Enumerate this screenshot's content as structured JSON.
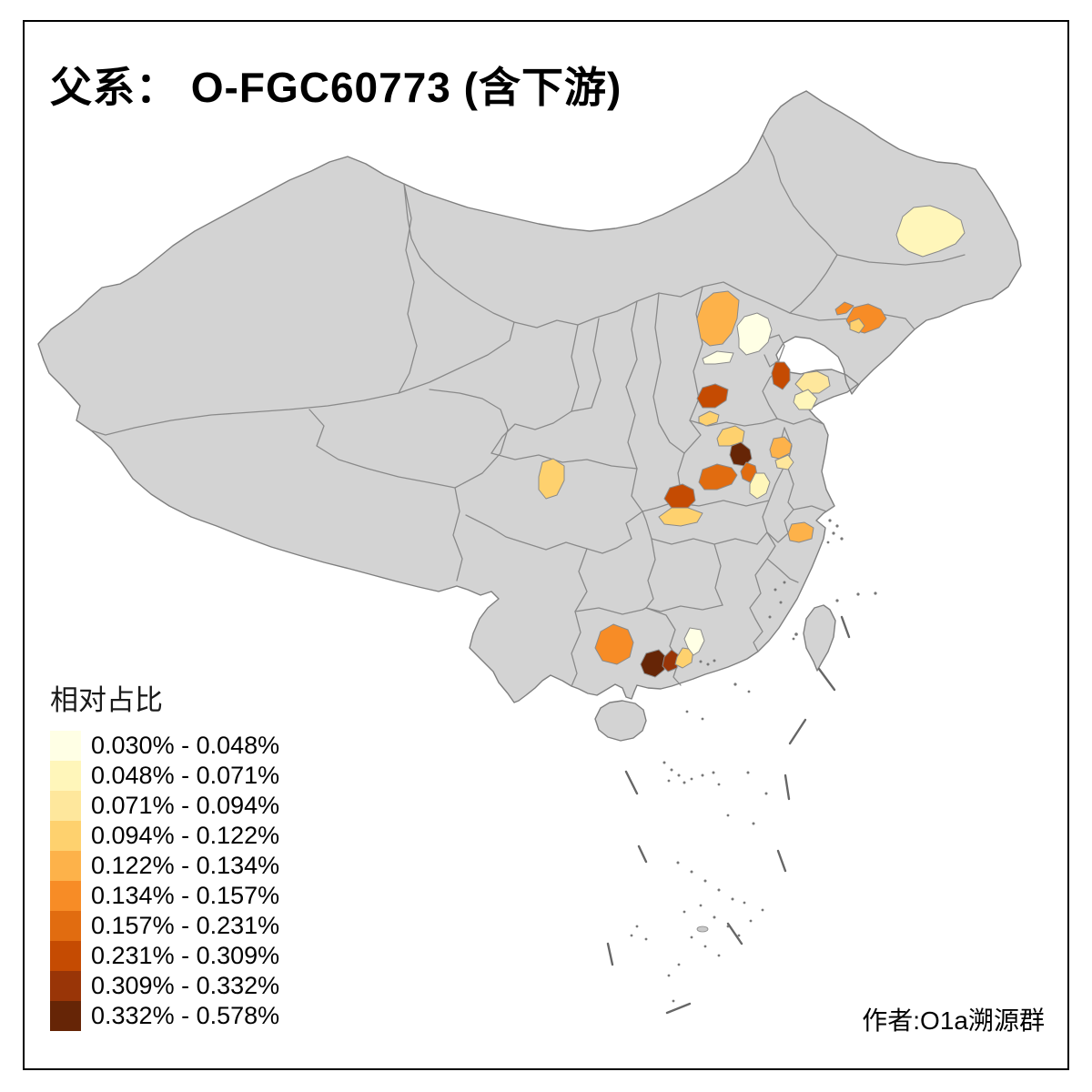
{
  "title": "父系： O-FGC60773 (含下游)",
  "attribution": "作者:O1a溯源群",
  "legend": {
    "title": "相对占比",
    "classes": [
      {
        "label": "0.030% - 0.048%",
        "color": "#FFFFE5"
      },
      {
        "label": "0.048% - 0.071%",
        "color": "#FFF6BA"
      },
      {
        "label": "0.071% - 0.094%",
        "color": "#FEE79C"
      },
      {
        "label": "0.094% - 0.122%",
        "color": "#FED16E"
      },
      {
        "label": "0.122% - 0.134%",
        "color": "#FDB24A"
      },
      {
        "label": "0.134% - 0.157%",
        "color": "#F78C26"
      },
      {
        "label": "0.157% - 0.231%",
        "color": "#E16C10"
      },
      {
        "label": "0.231% - 0.309%",
        "color": "#C54B02"
      },
      {
        "label": "0.309% - 0.332%",
        "color": "#993507"
      },
      {
        "label": "0.332% - 0.578%",
        "color": "#662506"
      }
    ]
  },
  "map": {
    "base_land_fill": "#D3D3D3",
    "border_color": "#8A8A8A",
    "sea_color": "#FFFFFF",
    "regions": [
      {
        "id": "heilongjiang-central",
        "class_index": 1
      },
      {
        "id": "hebei-northwest",
        "class_index": 4
      },
      {
        "id": "beijing-area-pale",
        "class_index": 0
      },
      {
        "id": "hebei-central-pale",
        "class_index": 0
      },
      {
        "id": "liaoning-coast-orange",
        "class_index": 5
      },
      {
        "id": "liaoning-coast-light",
        "class_index": 3
      },
      {
        "id": "hebei-coast-dark",
        "class_index": 7
      },
      {
        "id": "hebei-south-dark",
        "class_index": 7
      },
      {
        "id": "hebei-south-light",
        "class_index": 3
      },
      {
        "id": "shandong-north-yellow",
        "class_index": 2
      },
      {
        "id": "shandong-central-pale",
        "class_index": 1
      },
      {
        "id": "henan-north-light",
        "class_index": 3
      },
      {
        "id": "henan-central-darkest",
        "class_index": 9
      },
      {
        "id": "henan-central-dark",
        "class_index": 6
      },
      {
        "id": "henan-southeast-pale",
        "class_index": 1
      },
      {
        "id": "huaibei-orange",
        "class_index": 4
      },
      {
        "id": "huaibei-light",
        "class_index": 2
      },
      {
        "id": "henan-west-orange",
        "class_index": 6
      },
      {
        "id": "hubei-northwest-dark",
        "class_index": 7
      },
      {
        "id": "hubei-central-light",
        "class_index": 3
      },
      {
        "id": "sichuan-basin-light",
        "class_index": 3
      },
      {
        "id": "zhejiang-central-orange",
        "class_index": 4
      },
      {
        "id": "guangxi-central-orange",
        "class_index": 5
      },
      {
        "id": "guangdong-west-darkest",
        "class_index": 9
      },
      {
        "id": "guangdong-west-dark",
        "class_index": 8
      },
      {
        "id": "guangdong-west-light",
        "class_index": 3
      },
      {
        "id": "guangdong-north-pale",
        "class_index": 0
      }
    ]
  },
  "chart_data": {
    "type": "choropleth",
    "title": "父系： O-FGC60773 (含下游)",
    "legend_title": "相对占比",
    "unit": "percent of population (relative share)",
    "classes": [
      {
        "range": "0.030% - 0.048%",
        "color": "#FFFFE5"
      },
      {
        "range": "0.048% - 0.071%",
        "color": "#FFF6BA"
      },
      {
        "range": "0.071% - 0.094%",
        "color": "#FEE79C"
      },
      {
        "range": "0.094% - 0.122%",
        "color": "#FED16E"
      },
      {
        "range": "0.122% - 0.134%",
        "color": "#FDB24A"
      },
      {
        "range": "0.134% - 0.157%",
        "color": "#F78C26"
      },
      {
        "range": "0.157% - 0.231%",
        "color": "#E16C10"
      },
      {
        "range": "0.231% - 0.309%",
        "color": "#C54B02"
      },
      {
        "range": "0.309% - 0.332%",
        "color": "#993507"
      },
      {
        "range": "0.332% - 0.578%",
        "color": "#662506"
      }
    ],
    "highlighted_regions": [
      {
        "id": "heilongjiang-central",
        "value_range": "0.048% - 0.071%"
      },
      {
        "id": "hebei-northwest",
        "value_range": "0.122% - 0.134%"
      },
      {
        "id": "beijing-area-pale",
        "value_range": "0.030% - 0.048%"
      },
      {
        "id": "hebei-central-pale",
        "value_range": "0.030% - 0.048%"
      },
      {
        "id": "liaoning-coast-orange",
        "value_range": "0.134% - 0.157%"
      },
      {
        "id": "liaoning-coast-light",
        "value_range": "0.094% - 0.122%"
      },
      {
        "id": "hebei-coast-dark",
        "value_range": "0.231% - 0.309%"
      },
      {
        "id": "hebei-south-dark",
        "value_range": "0.231% - 0.309%"
      },
      {
        "id": "hebei-south-light",
        "value_range": "0.094% - 0.122%"
      },
      {
        "id": "shandong-north-yellow",
        "value_range": "0.071% - 0.094%"
      },
      {
        "id": "shandong-central-pale",
        "value_range": "0.048% - 0.071%"
      },
      {
        "id": "henan-north-light",
        "value_range": "0.094% - 0.122%"
      },
      {
        "id": "henan-central-darkest",
        "value_range": "0.332% - 0.578%"
      },
      {
        "id": "henan-central-dark",
        "value_range": "0.157% - 0.231%"
      },
      {
        "id": "henan-southeast-pale",
        "value_range": "0.048% - 0.071%"
      },
      {
        "id": "huaibei-orange",
        "value_range": "0.122% - 0.134%"
      },
      {
        "id": "huaibei-light",
        "value_range": "0.071% - 0.094%"
      },
      {
        "id": "henan-west-orange",
        "value_range": "0.157% - 0.231%"
      },
      {
        "id": "hubei-northwest-dark",
        "value_range": "0.231% - 0.309%"
      },
      {
        "id": "hubei-central-light",
        "value_range": "0.094% - 0.122%"
      },
      {
        "id": "sichuan-basin-light",
        "value_range": "0.094% - 0.122%"
      },
      {
        "id": "zhejiang-central-orange",
        "value_range": "0.122% - 0.134%"
      },
      {
        "id": "guangxi-central-orange",
        "value_range": "0.134% - 0.157%"
      },
      {
        "id": "guangdong-west-darkest",
        "value_range": "0.332% - 0.578%"
      },
      {
        "id": "guangdong-west-dark",
        "value_range": "0.309% - 0.332%"
      },
      {
        "id": "guangdong-west-light",
        "value_range": "0.094% - 0.122%"
      },
      {
        "id": "guangdong-north-pale",
        "value_range": "0.030% - 0.048%"
      }
    ]
  }
}
